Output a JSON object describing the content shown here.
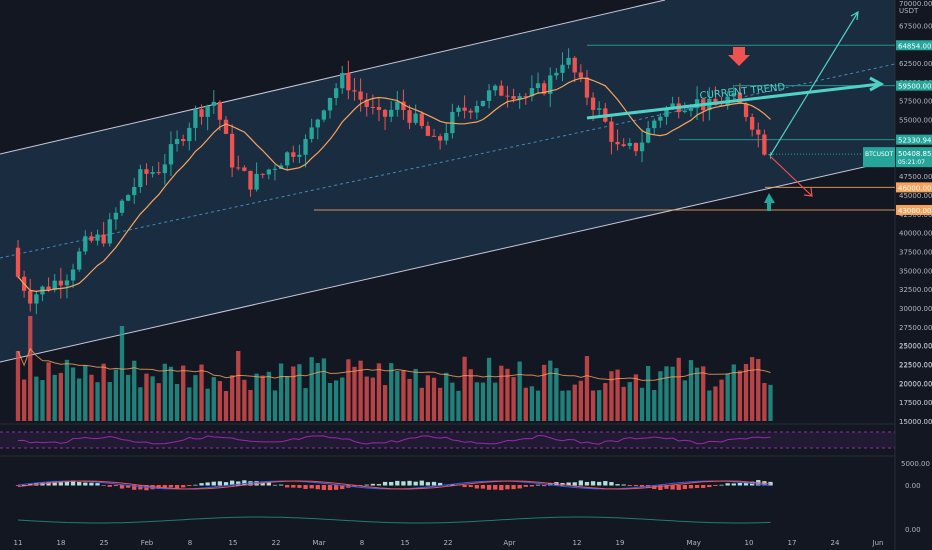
{
  "chart_data": {
    "type": "candlestick",
    "symbol": "BTCUSDT",
    "price_currency": "USDT",
    "price_axis": {
      "ticks": [
        15000,
        17500,
        20000,
        22500,
        25000,
        27500,
        30000,
        32500,
        35000,
        37500,
        40000,
        42500,
        45000,
        47500,
        50000,
        52500,
        55000,
        57500,
        60000,
        62500,
        65000,
        67500,
        70000
      ],
      "ylim": [
        15000,
        70000
      ]
    },
    "time_axis": {
      "labels": [
        "11",
        "18",
        "25",
        "Feb",
        "8",
        "15",
        "22",
        "Mar",
        "8",
        "15",
        "22",
        "Apr",
        "12",
        "19",
        "May",
        "10",
        "17",
        "24",
        "Jun"
      ],
      "start_date": "2021-01-11",
      "end_date": "2021-05-31",
      "label_dates": [
        "2021-01-11",
        "2021-01-18",
        "2021-01-25",
        "2021-02-01",
        "2021-02-08",
        "2021-02-15",
        "2021-02-22",
        "2021-03-01",
        "2021-03-08",
        "2021-03-15",
        "2021-03-22",
        "2021-04-01",
        "2021-04-12",
        "2021-04-19",
        "2021-05-01",
        "2021-05-10",
        "2021-05-17",
        "2021-05-24",
        "2021-05-31"
      ]
    },
    "price_labels": [
      {
        "value": 64854.0,
        "text": "64854.00",
        "color": "#26a69a",
        "kind": "level"
      },
      {
        "value": 59500.0,
        "text": "59500.00",
        "color": "#26a69a",
        "kind": "level"
      },
      {
        "value": 52330.94,
        "text": "52330.94",
        "color": "#26a69a",
        "kind": "level"
      },
      {
        "value": 50408.85,
        "text": "50408.85",
        "color": "#26a69a",
        "kind": "last",
        "symbol": "BTCUSDT",
        "countdown": "05:21:07"
      },
      {
        "value": 46000.0,
        "text": "46000.00",
        "color": "#f7a35c",
        "kind": "level"
      },
      {
        "value": 43000.0,
        "text": "43000.00",
        "color": "#f7a35c",
        "kind": "level"
      }
    ],
    "annotations": [
      {
        "text": "CURRENT TREND"
      }
    ],
    "volume_axis": {
      "ticks": [
        15000,
        17500,
        20000,
        22500,
        25000
      ]
    },
    "macd_axis": {
      "ticks": [
        "5000.00",
        "0.00"
      ]
    },
    "lower_axis": {
      "ticks": [
        "0.00"
      ]
    },
    "colors": {
      "up": "#26a69a",
      "down": "#ef5350",
      "ma": "#f7a35c",
      "channel_fill": "#1f3a55",
      "channel_edge": "#c9c9d9",
      "trend": "#4fd1c5",
      "rsi": "#9c27b0"
    }
  }
}
